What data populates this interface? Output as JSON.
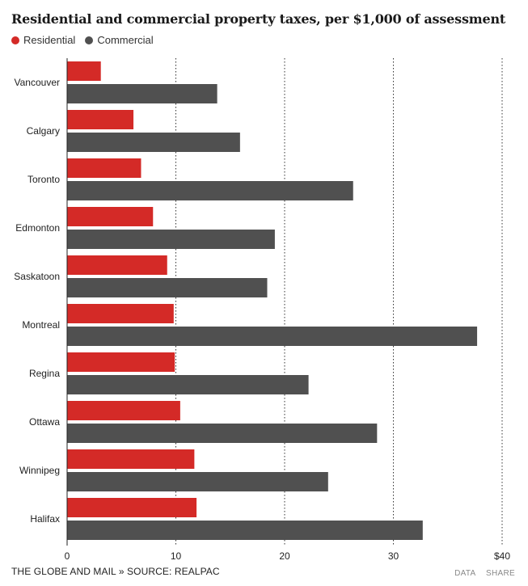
{
  "title": "Residential and commercial property taxes, per $1,000 of assessment",
  "footer": {
    "credit": "THE GLOBE AND MAIL » SOURCE: REALPAC",
    "data_link": "DATA",
    "share_link": "SHARE"
  },
  "chart_data": {
    "type": "bar",
    "orientation": "horizontal",
    "categories": [
      "Vancouver",
      "Calgary",
      "Toronto",
      "Edmonton",
      "Saskatoon",
      "Montreal",
      "Regina",
      "Ottawa",
      "Winnipeg",
      "Halifax"
    ],
    "series": [
      {
        "name": "Residential",
        "color": "#d42a27",
        "values": [
          3.1,
          6.1,
          6.8,
          7.9,
          9.2,
          9.8,
          9.9,
          10.4,
          11.7,
          11.9
        ]
      },
      {
        "name": "Commercial",
        "color": "#505050",
        "values": [
          13.8,
          15.9,
          26.3,
          19.1,
          18.4,
          37.7,
          22.2,
          28.5,
          24.0,
          32.7
        ]
      }
    ],
    "xlim": [
      0,
      40
    ],
    "xticks": [
      "0",
      "10",
      "20",
      "30",
      "$40"
    ],
    "grid": true,
    "legend_position": "top-left"
  }
}
